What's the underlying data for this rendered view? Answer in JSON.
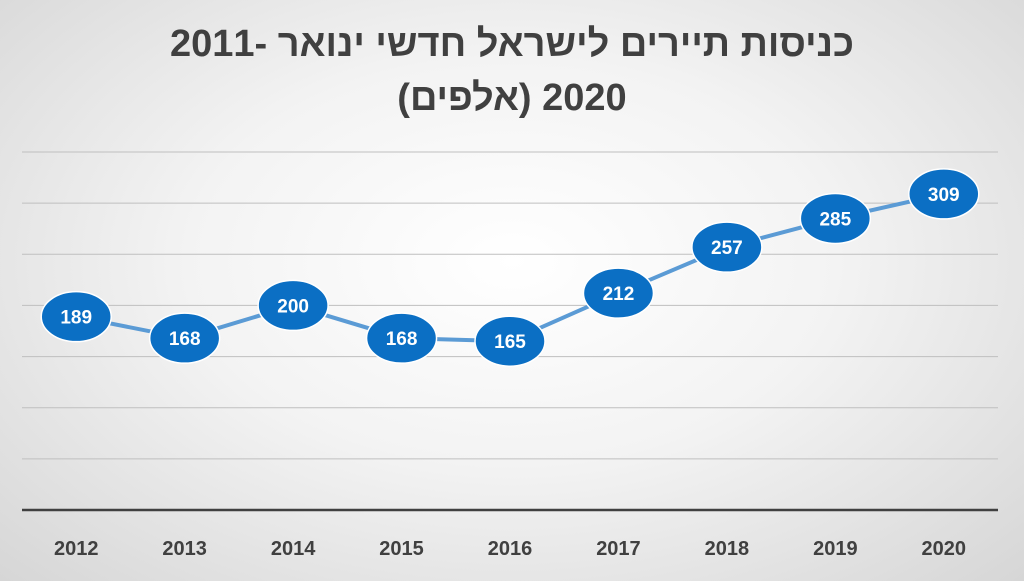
{
  "chart_data": {
    "type": "line",
    "title_lines": [
      "כניסות תיירים לישראל חדשי ינואר -2011",
      "2020 (אלפים)"
    ],
    "categories": [
      "2012",
      "2013",
      "2014",
      "2015",
      "2016",
      "2017",
      "2018",
      "2019",
      "2020"
    ],
    "values": [
      189,
      168,
      200,
      168,
      165,
      212,
      257,
      285,
      309
    ],
    "ylim": [
      0,
      350
    ],
    "grid": true,
    "line_color": "#5b9bd5",
    "marker_color": "#0b6fc4",
    "label_color": "#ffffff",
    "axis_color": "#404040",
    "gridline_color": "#bfbfbf"
  }
}
